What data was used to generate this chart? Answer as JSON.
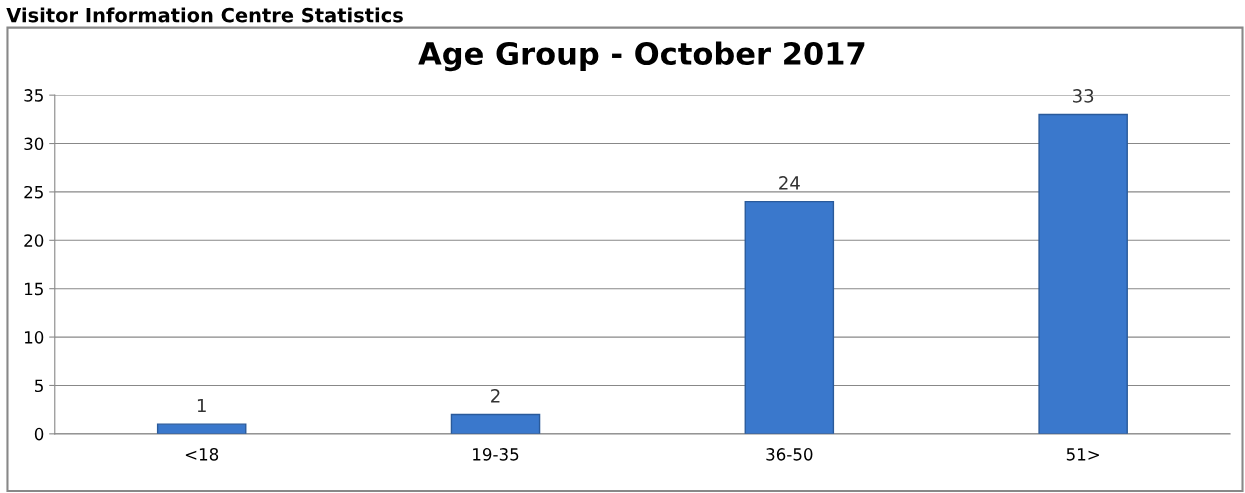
{
  "chart_data": {
    "type": "bar",
    "title": "Age Group - October 2017",
    "annotations": [
      "Visitor Information Centre Statistics"
    ],
    "categories": [
      "<18",
      "19-35",
      "36-50",
      "51>"
    ],
    "values": [
      1,
      2,
      24,
      33
    ],
    "color": "#3a78cc",
    "ylim": [
      0,
      35
    ],
    "yticks": [
      0,
      5,
      10,
      15,
      20,
      25,
      30,
      35
    ],
    "grid": "y",
    "data_labels": true
  }
}
